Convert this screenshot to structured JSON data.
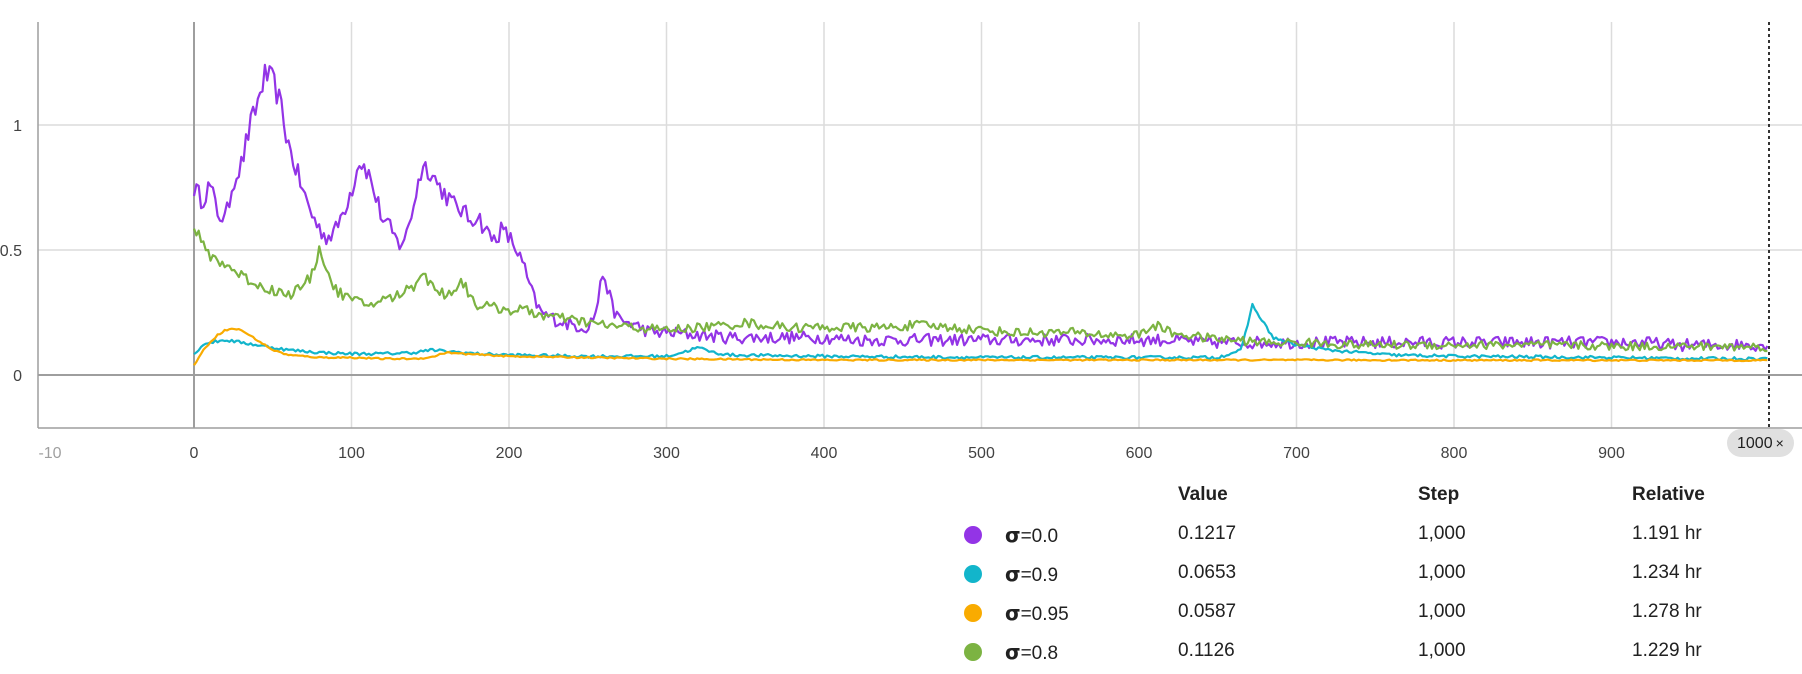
{
  "chart_data": {
    "type": "line",
    "title": "",
    "xlabel": "",
    "ylabel": "",
    "xlim": [
      -100,
      1000
    ],
    "ylim": [
      -0.2,
      1.4
    ],
    "x_ticks": [
      0,
      100,
      200,
      300,
      400,
      500,
      600,
      700,
      800,
      900
    ],
    "x_tick_labels": [
      "0",
      "100",
      "200",
      "300",
      "400",
      "500",
      "600",
      "700",
      "800",
      "900"
    ],
    "y_ticks": [
      0,
      0.5,
      1
    ],
    "y_tick_labels": [
      "0",
      "0.5",
      "1"
    ],
    "faded_tick_label": "-10",
    "grid": true,
    "hover_step": {
      "x": 1000,
      "label": "1000",
      "close": "×"
    },
    "series": [
      {
        "name": "=0.0",
        "color": "#9334e6",
        "points": [
          [
            0,
            0.75
          ],
          [
            5,
            0.7
          ],
          [
            10,
            0.76
          ],
          [
            15,
            0.65
          ],
          [
            20,
            0.62
          ],
          [
            25,
            0.78
          ],
          [
            30,
            0.84
          ],
          [
            35,
            0.98
          ],
          [
            40,
            1.08
          ],
          [
            45,
            1.2
          ],
          [
            50,
            1.18
          ],
          [
            55,
            1.08
          ],
          [
            60,
            0.92
          ],
          [
            65,
            0.82
          ],
          [
            70,
            0.72
          ],
          [
            75,
            0.64
          ],
          [
            80,
            0.58
          ],
          [
            85,
            0.55
          ],
          [
            90,
            0.58
          ],
          [
            95,
            0.66
          ],
          [
            100,
            0.74
          ],
          [
            105,
            0.86
          ],
          [
            110,
            0.82
          ],
          [
            115,
            0.72
          ],
          [
            120,
            0.62
          ],
          [
            125,
            0.58
          ],
          [
            130,
            0.52
          ],
          [
            135,
            0.56
          ],
          [
            140,
            0.7
          ],
          [
            145,
            0.84
          ],
          [
            150,
            0.82
          ],
          [
            155,
            0.76
          ],
          [
            160,
            0.72
          ],
          [
            165,
            0.68
          ],
          [
            170,
            0.66
          ],
          [
            175,
            0.62
          ],
          [
            180,
            0.64
          ],
          [
            185,
            0.58
          ],
          [
            190,
            0.54
          ],
          [
            195,
            0.58
          ],
          [
            200,
            0.55
          ],
          [
            205,
            0.5
          ],
          [
            210,
            0.42
          ],
          [
            215,
            0.32
          ],
          [
            220,
            0.25
          ],
          [
            230,
            0.22
          ],
          [
            240,
            0.2
          ],
          [
            250,
            0.19
          ],
          [
            255,
            0.25
          ],
          [
            260,
            0.42
          ],
          [
            265,
            0.28
          ],
          [
            270,
            0.22
          ],
          [
            280,
            0.2
          ],
          [
            290,
            0.17
          ],
          [
            300,
            0.17
          ],
          [
            320,
            0.16
          ],
          [
            340,
            0.15
          ],
          [
            360,
            0.15
          ],
          [
            380,
            0.15
          ],
          [
            400,
            0.15
          ],
          [
            420,
            0.14
          ],
          [
            440,
            0.14
          ],
          [
            460,
            0.14
          ],
          [
            480,
            0.14
          ],
          [
            500,
            0.14
          ],
          [
            520,
            0.14
          ],
          [
            540,
            0.14
          ],
          [
            560,
            0.14
          ],
          [
            580,
            0.14
          ],
          [
            600,
            0.14
          ],
          [
            620,
            0.14
          ],
          [
            640,
            0.13
          ],
          [
            660,
            0.13
          ],
          [
            680,
            0.13
          ],
          [
            700,
            0.13
          ],
          [
            720,
            0.13
          ],
          [
            740,
            0.13
          ],
          [
            760,
            0.13
          ],
          [
            780,
            0.13
          ],
          [
            800,
            0.13
          ],
          [
            820,
            0.13
          ],
          [
            840,
            0.13
          ],
          [
            860,
            0.13
          ],
          [
            880,
            0.13
          ],
          [
            900,
            0.13
          ],
          [
            920,
            0.13
          ],
          [
            940,
            0.12
          ],
          [
            960,
            0.12
          ],
          [
            980,
            0.12
          ],
          [
            1000,
            0.1217
          ]
        ]
      },
      {
        "name": "=0.9",
        "color": "#12b5cb",
        "points": [
          [
            0,
            0.08
          ],
          [
            5,
            0.12
          ],
          [
            10,
            0.13
          ],
          [
            20,
            0.14
          ],
          [
            30,
            0.13
          ],
          [
            40,
            0.12
          ],
          [
            60,
            0.1
          ],
          [
            80,
            0.09
          ],
          [
            100,
            0.085
          ],
          [
            120,
            0.085
          ],
          [
            140,
            0.09
          ],
          [
            150,
            0.1
          ],
          [
            160,
            0.095
          ],
          [
            180,
            0.085
          ],
          [
            200,
            0.08
          ],
          [
            250,
            0.075
          ],
          [
            300,
            0.075
          ],
          [
            310,
            0.09
          ],
          [
            320,
            0.11
          ],
          [
            330,
            0.09
          ],
          [
            340,
            0.08
          ],
          [
            400,
            0.075
          ],
          [
            500,
            0.07
          ],
          [
            600,
            0.07
          ],
          [
            650,
            0.07
          ],
          [
            665,
            0.1
          ],
          [
            672,
            0.28
          ],
          [
            678,
            0.22
          ],
          [
            685,
            0.15
          ],
          [
            700,
            0.12
          ],
          [
            720,
            0.1
          ],
          [
            760,
            0.08
          ],
          [
            800,
            0.075
          ],
          [
            900,
            0.07
          ],
          [
            950,
            0.066
          ],
          [
            1000,
            0.0653
          ]
        ]
      },
      {
        "name": "=0.95",
        "color": "#f9ab00",
        "points": [
          [
            0,
            0.04
          ],
          [
            5,
            0.09
          ],
          [
            10,
            0.13
          ],
          [
            15,
            0.16
          ],
          [
            20,
            0.18
          ],
          [
            25,
            0.185
          ],
          [
            30,
            0.18
          ],
          [
            40,
            0.14
          ],
          [
            50,
            0.1
          ],
          [
            60,
            0.08
          ],
          [
            80,
            0.07
          ],
          [
            100,
            0.07
          ],
          [
            120,
            0.065
          ],
          [
            140,
            0.065
          ],
          [
            150,
            0.07
          ],
          [
            160,
            0.09
          ],
          [
            170,
            0.085
          ],
          [
            200,
            0.075
          ],
          [
            250,
            0.07
          ],
          [
            300,
            0.065
          ],
          [
            400,
            0.06
          ],
          [
            500,
            0.06
          ],
          [
            600,
            0.06
          ],
          [
            700,
            0.06
          ],
          [
            800,
            0.059
          ],
          [
            900,
            0.059
          ],
          [
            1000,
            0.0587
          ]
        ]
      },
      {
        "name": "=0.8",
        "color": "#7cb342",
        "points": [
          [
            0,
            0.6
          ],
          [
            5,
            0.52
          ],
          [
            10,
            0.48
          ],
          [
            20,
            0.44
          ],
          [
            30,
            0.4
          ],
          [
            40,
            0.36
          ],
          [
            50,
            0.34
          ],
          [
            60,
            0.32
          ],
          [
            70,
            0.36
          ],
          [
            75,
            0.4
          ],
          [
            80,
            0.52
          ],
          [
            85,
            0.4
          ],
          [
            90,
            0.34
          ],
          [
            100,
            0.3
          ],
          [
            110,
            0.28
          ],
          [
            120,
            0.3
          ],
          [
            130,
            0.32
          ],
          [
            140,
            0.36
          ],
          [
            145,
            0.42
          ],
          [
            150,
            0.36
          ],
          [
            160,
            0.32
          ],
          [
            165,
            0.34
          ],
          [
            170,
            0.38
          ],
          [
            175,
            0.32
          ],
          [
            180,
            0.28
          ],
          [
            190,
            0.27
          ],
          [
            200,
            0.26
          ],
          [
            210,
            0.26
          ],
          [
            220,
            0.24
          ],
          [
            240,
            0.22
          ],
          [
            260,
            0.2
          ],
          [
            280,
            0.19
          ],
          [
            300,
            0.18
          ],
          [
            320,
            0.19
          ],
          [
            340,
            0.2
          ],
          [
            350,
            0.21
          ],
          [
            360,
            0.2
          ],
          [
            380,
            0.19
          ],
          [
            400,
            0.19
          ],
          [
            420,
            0.19
          ],
          [
            440,
            0.19
          ],
          [
            460,
            0.2
          ],
          [
            480,
            0.19
          ],
          [
            500,
            0.18
          ],
          [
            520,
            0.17
          ],
          [
            540,
            0.17
          ],
          [
            560,
            0.17
          ],
          [
            580,
            0.16
          ],
          [
            600,
            0.16
          ],
          [
            610,
            0.2
          ],
          [
            620,
            0.17
          ],
          [
            640,
            0.15
          ],
          [
            660,
            0.14
          ],
          [
            680,
            0.13
          ],
          [
            700,
            0.13
          ],
          [
            740,
            0.12
          ],
          [
            780,
            0.12
          ],
          [
            820,
            0.12
          ],
          [
            860,
            0.12
          ],
          [
            900,
            0.115
          ],
          [
            940,
            0.115
          ],
          [
            980,
            0.113
          ],
          [
            1000,
            0.1126
          ]
        ]
      }
    ]
  },
  "legend": {
    "headers": {
      "value": "Value",
      "step": "Step",
      "relative": "Relative"
    },
    "sigma_symbol": "σ",
    "rows": [
      {
        "name": "=0.0",
        "color": "#9334e6",
        "value": "0.1217",
        "step": "1,000",
        "relative": "1.191 hr"
      },
      {
        "name": "=0.9",
        "color": "#12b5cb",
        "value": "0.0653",
        "step": "1,000",
        "relative": "1.234 hr"
      },
      {
        "name": "=0.95",
        "color": "#f9ab00",
        "value": "0.0587",
        "step": "1,000",
        "relative": "1.278 hr"
      },
      {
        "name": "=0.8",
        "color": "#7cb342",
        "value": "0.1126",
        "step": "1,000",
        "relative": "1.229 hr"
      }
    ]
  }
}
